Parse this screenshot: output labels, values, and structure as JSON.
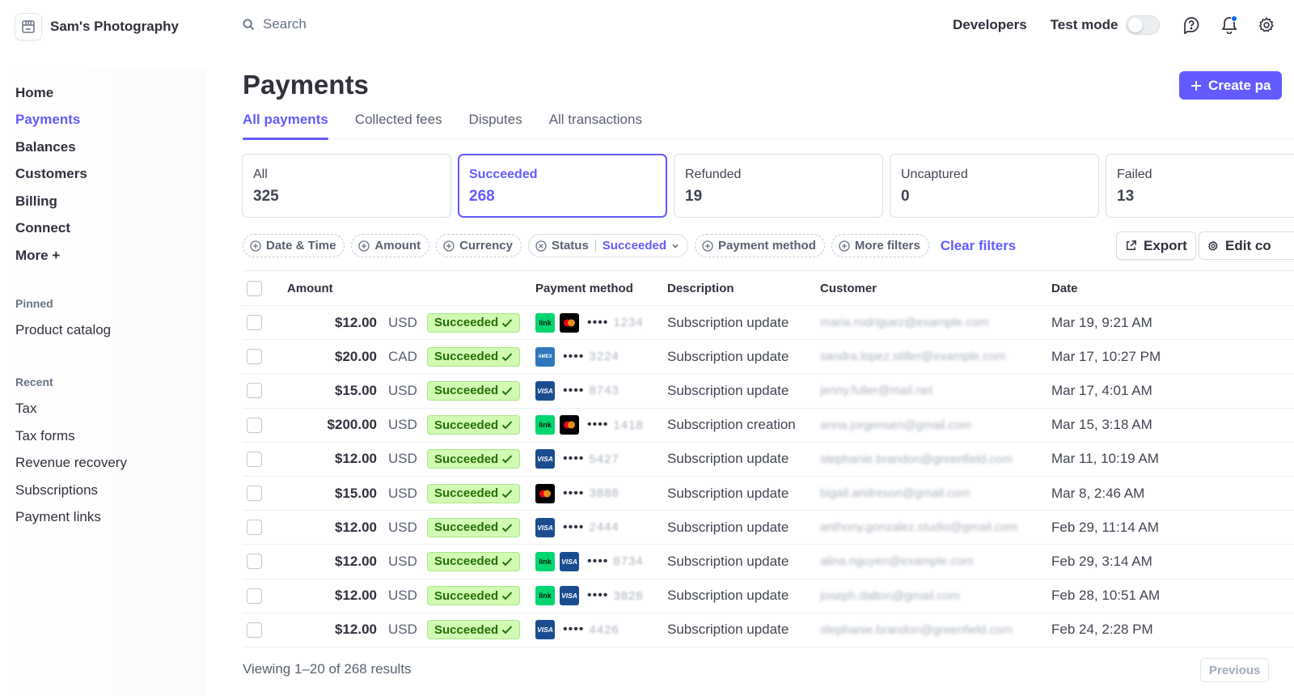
{
  "account": {
    "name": "Sam's Photography"
  },
  "search": {
    "placeholder": "Search"
  },
  "topbar": {
    "developers": "Developers",
    "test_mode": "Test mode"
  },
  "nav": {
    "items": [
      {
        "label": "Home",
        "active": false
      },
      {
        "label": "Payments",
        "active": true
      },
      {
        "label": "Balances",
        "active": false
      },
      {
        "label": "Customers",
        "active": false
      },
      {
        "label": "Billing",
        "active": false
      },
      {
        "label": "Connect",
        "active": false
      },
      {
        "label": "More +",
        "active": false
      }
    ],
    "pinned_label": "Pinned",
    "pinned": [
      "Product catalog"
    ],
    "recent_label": "Recent",
    "recent": [
      "Tax",
      "Tax forms",
      "Revenue recovery",
      "Subscriptions",
      "Payment links"
    ]
  },
  "page": {
    "title": "Payments",
    "create_label": "Create pa",
    "tabs": [
      "All payments",
      "Collected fees",
      "Disputes",
      "All transactions"
    ]
  },
  "stats": [
    {
      "label": "All",
      "count": "325"
    },
    {
      "label": "Succeeded",
      "count": "268"
    },
    {
      "label": "Refunded",
      "count": "19"
    },
    {
      "label": "Uncaptured",
      "count": "0"
    },
    {
      "label": "Failed",
      "count": "13"
    }
  ],
  "filters": {
    "date": "Date & Time",
    "amount": "Amount",
    "currency": "Currency",
    "status_label": "Status",
    "status_value": "Succeeded",
    "payment_method": "Payment method",
    "more": "More filters",
    "clear": "Clear filters",
    "export": "Export",
    "edit_columns": "Edit co"
  },
  "table": {
    "headers": {
      "amount": "Amount",
      "payment_method": "Payment method",
      "description": "Description",
      "customer": "Customer",
      "date": "Date"
    },
    "masked_digits": "••••",
    "rows": [
      {
        "amount": "$12.00",
        "currency": "USD",
        "status": "Succeeded",
        "methods": [
          "link",
          "mastercard"
        ],
        "last4": "1234",
        "description": "Subscription update",
        "customer": "maria.rodriguez@example.com",
        "date": "Mar 19, 9:21 AM"
      },
      {
        "amount": "$20.00",
        "currency": "CAD",
        "status": "Succeeded",
        "methods": [
          "amex"
        ],
        "last4": "3224",
        "description": "Subscription update",
        "customer": "sandra.lopez.stiller@example.com",
        "date": "Mar 17, 10:27 PM"
      },
      {
        "amount": "$15.00",
        "currency": "USD",
        "status": "Succeeded",
        "methods": [
          "visa"
        ],
        "last4": "8743",
        "description": "Subscription update",
        "customer": "jenny.fuller@mail.net",
        "date": "Mar 17, 4:01 AM"
      },
      {
        "amount": "$200.00",
        "currency": "USD",
        "status": "Succeeded",
        "methods": [
          "link",
          "mastercard"
        ],
        "last4": "1418",
        "description": "Subscription creation",
        "customer": "anna.jorgensen@gmail.com",
        "date": "Mar 15, 3:18 AM"
      },
      {
        "amount": "$12.00",
        "currency": "USD",
        "status": "Succeeded",
        "methods": [
          "visa"
        ],
        "last4": "5427",
        "description": "Subscription update",
        "customer": "stephanie.brandon@greenfield.com",
        "date": "Mar 11, 10:19 AM"
      },
      {
        "amount": "$15.00",
        "currency": "USD",
        "status": "Succeeded",
        "methods": [
          "mastercard"
        ],
        "last4": "3888",
        "description": "Subscription update",
        "customer": "bigail.andreson@gmail.com",
        "date": "Mar 8, 2:46 AM"
      },
      {
        "amount": "$12.00",
        "currency": "USD",
        "status": "Succeeded",
        "methods": [
          "visa"
        ],
        "last4": "2444",
        "description": "Subscription update",
        "customer": "anthony.gonzalez.studio@gmail.com",
        "date": "Feb 29, 11:14 AM"
      },
      {
        "amount": "$12.00",
        "currency": "USD",
        "status": "Succeeded",
        "methods": [
          "link",
          "visa"
        ],
        "last4": "8734",
        "description": "Subscription update",
        "customer": "alina.nguyen@example.com",
        "date": "Feb 29, 3:14 AM"
      },
      {
        "amount": "$12.00",
        "currency": "USD",
        "status": "Succeeded",
        "methods": [
          "link",
          "visa"
        ],
        "last4": "3828",
        "description": "Subscription update",
        "customer": "joseph.dalton@gmail.com",
        "date": "Feb 28, 10:51 AM"
      },
      {
        "amount": "$12.00",
        "currency": "USD",
        "status": "Succeeded",
        "methods": [
          "visa"
        ],
        "last4": "4426",
        "description": "Subscription update",
        "customer": "stephanie.brandon@greenfield.com",
        "date": "Feb 24, 2:28 PM"
      }
    ]
  },
  "footer": {
    "results": "Viewing 1–20 of 268 results",
    "previous": "Previous"
  },
  "colors": {
    "accent": "#635bff",
    "success_bg": "#d1fab3",
    "success_text": "#217005"
  }
}
